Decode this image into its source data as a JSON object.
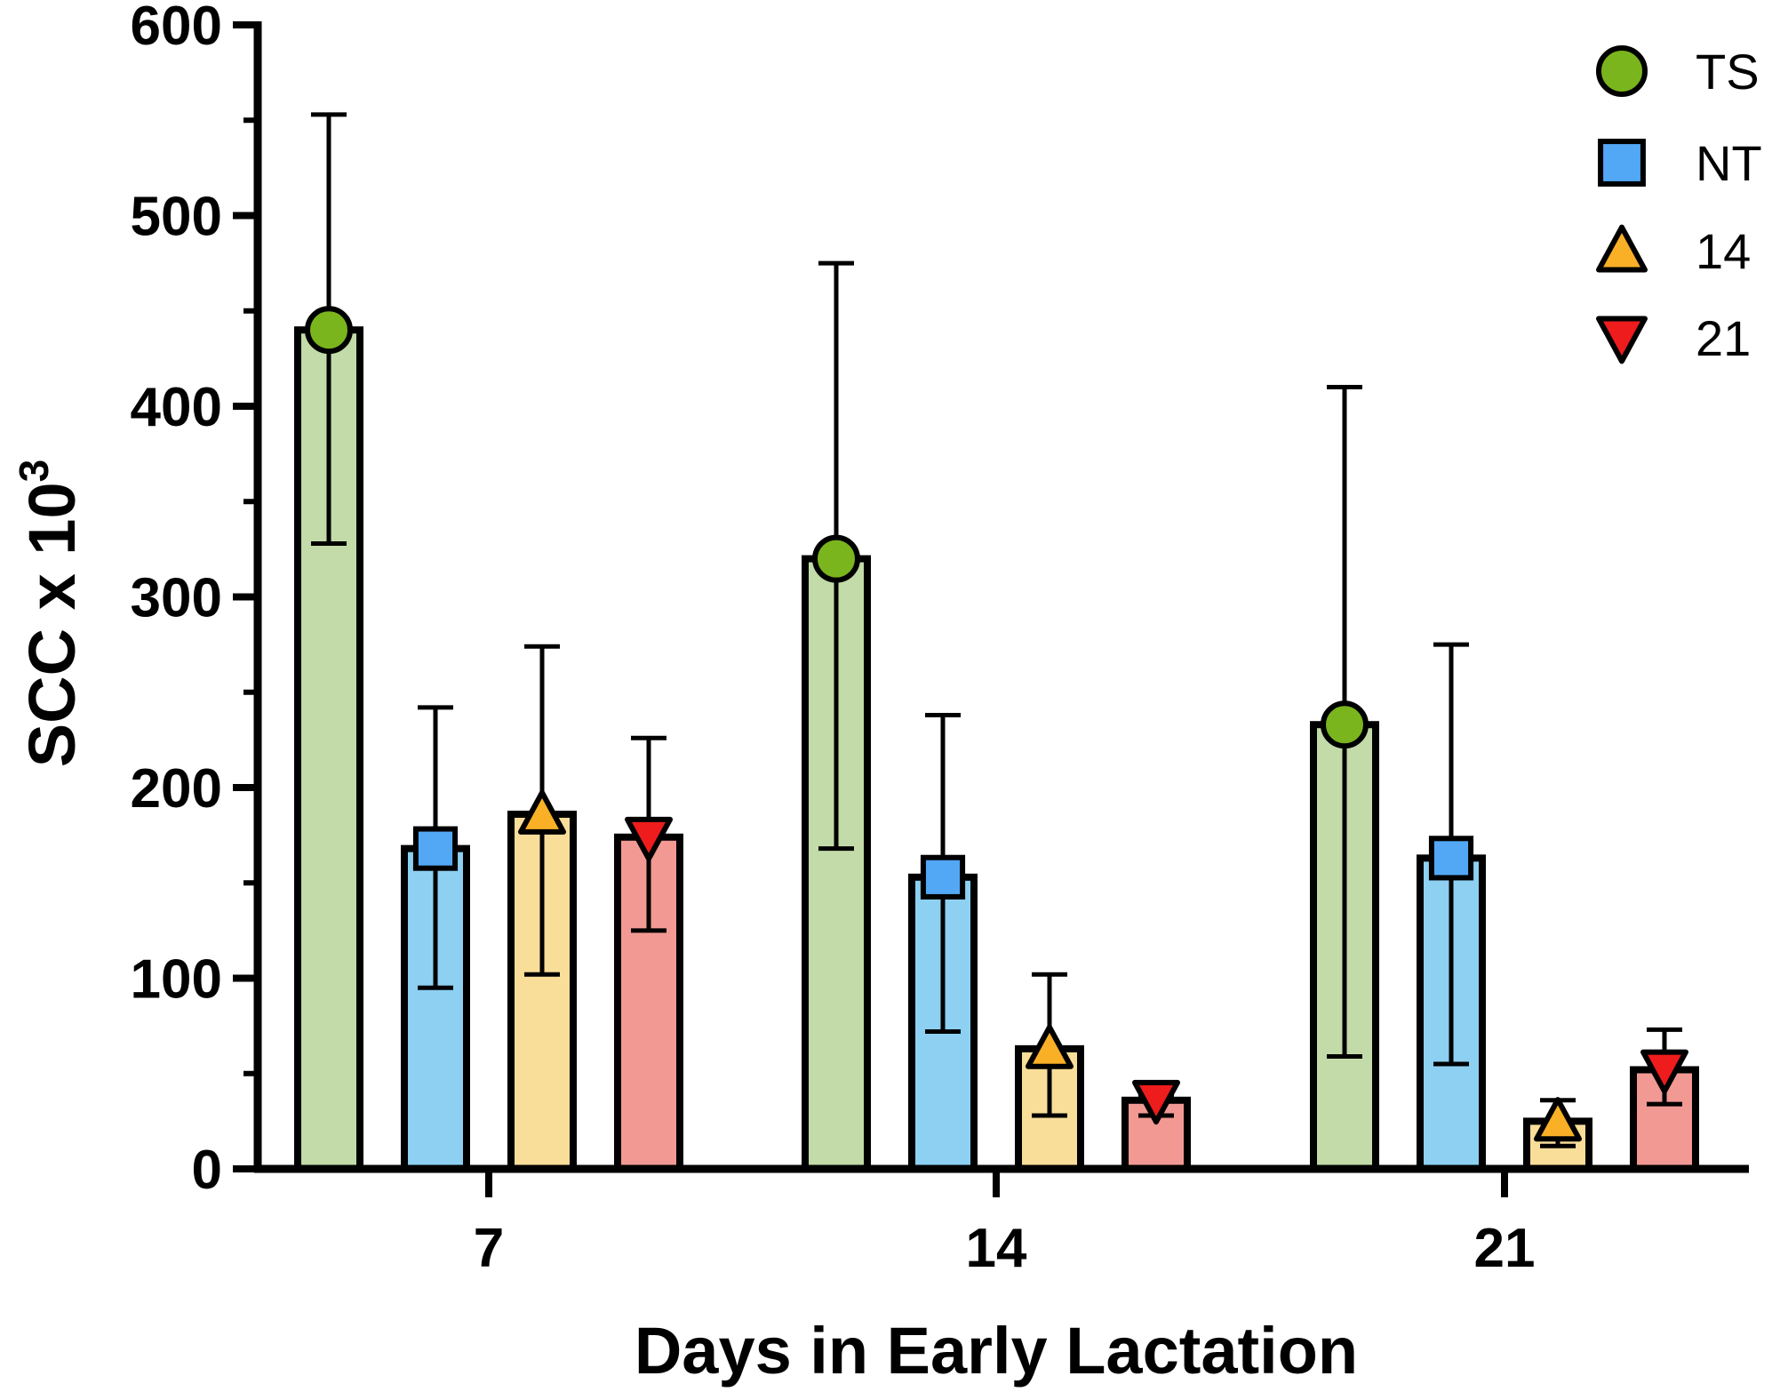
{
  "chart_data": {
    "type": "bar",
    "xlabel": "Days in Early Lactation",
    "ylabel": {
      "main": "SCC x 10",
      "superscript": "3"
    },
    "ylim": [
      0,
      600
    ],
    "yticks": [
      "0",
      "100",
      "200",
      "300",
      "400",
      "500",
      "600"
    ],
    "categories": [
      "7",
      "14",
      "21"
    ],
    "legend_position": "top-right",
    "grid": false,
    "error_bars": "one standard error (upper and lower caps)",
    "series": [
      {
        "name": "TS",
        "marker": "circle",
        "marker_color": "#7ab51d",
        "bar_color": "#c2dba9",
        "values": [
          440,
          320,
          233
        ],
        "error_low": [
          328,
          168,
          59
        ],
        "error_high": [
          553,
          475,
          410
        ]
      },
      {
        "name": "NT",
        "marker": "square",
        "marker_color": "#52a8f5",
        "bar_color": "#8dd0f2",
        "values": [
          168,
          153,
          163
        ],
        "error_low": [
          95,
          72,
          55
        ],
        "error_high": [
          242,
          238,
          275
        ]
      },
      {
        "name": "14",
        "marker": "triangle-up",
        "marker_color": "#f9b026",
        "bar_color": "#f9de9a",
        "values": [
          186,
          63,
          25
        ],
        "error_low": [
          102,
          28,
          12
        ],
        "error_high": [
          274,
          102,
          36
        ]
      },
      {
        "name": "21",
        "marker": "triangle-down",
        "marker_color": "#ee1c1c",
        "bar_color": "#f29994",
        "values": [
          174,
          36,
          52
        ],
        "error_low": [
          125,
          28,
          34
        ],
        "error_high": [
          226,
          38,
          73
        ]
      }
    ]
  }
}
